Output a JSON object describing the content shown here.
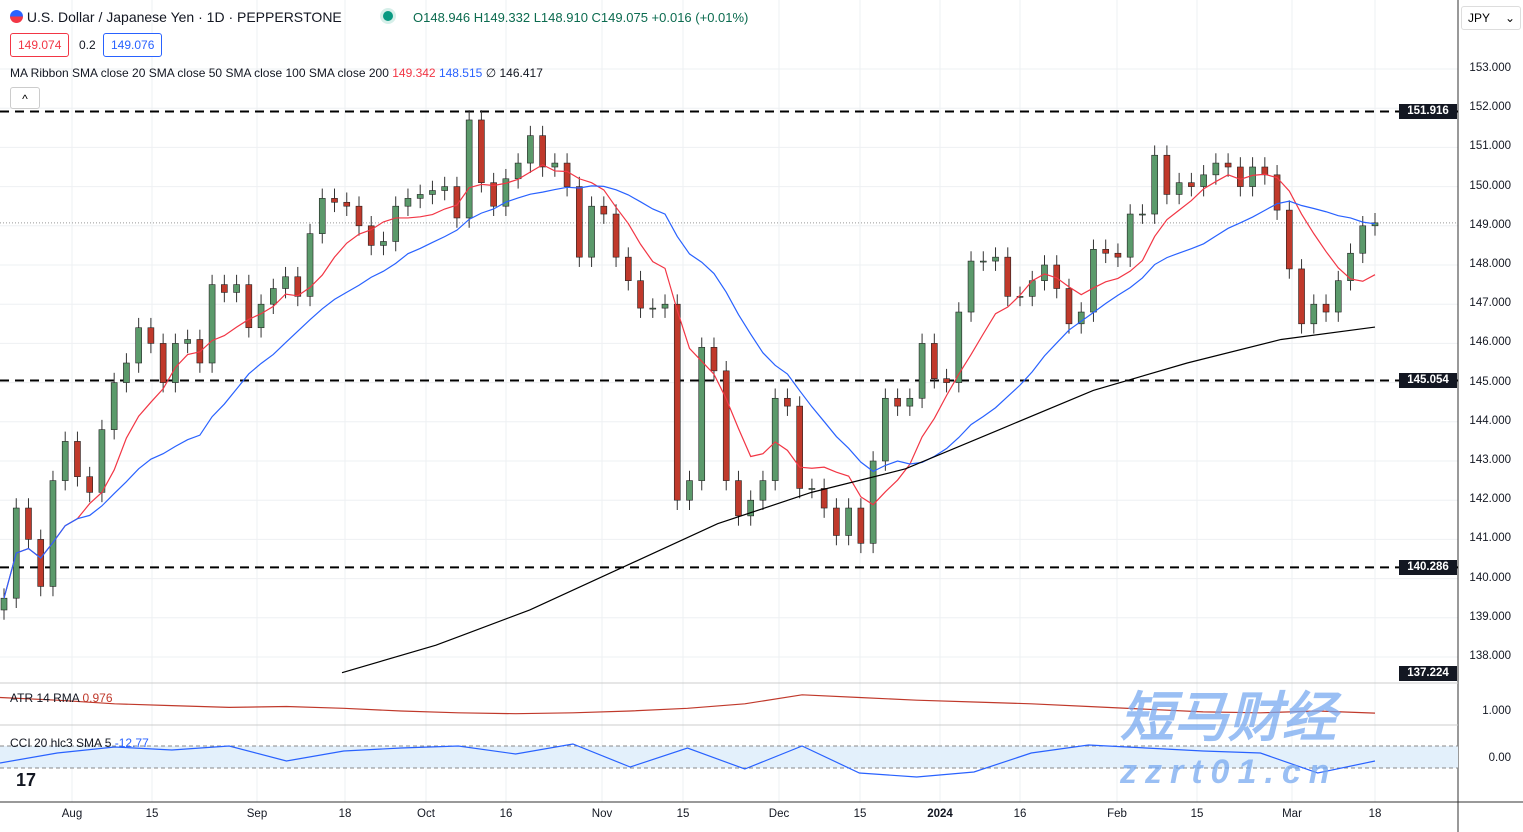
{
  "header": {
    "symbol": "U.S. Dollar / Japanese Yen · 1D · PEPPERSTONE",
    "ohlc": "O148.946 H149.332 L148.910 C149.075 +0.016 (+0.01%)",
    "bid": "149.074",
    "spread": "0.2",
    "ask": "149.076",
    "currency": "JPY"
  },
  "ma_legend": {
    "label": "MA Ribbon SMA close 20 SMA close 50 SMA close 100 SMA close 200",
    "v20": "149.342",
    "v50": "148.515",
    "v100": "∅",
    "v200": "146.417"
  },
  "atr": {
    "label": "ATR 14 RMA",
    "value": "0.976",
    "axis": "1.000"
  },
  "cci": {
    "label": "CCI 20 hlc3 SMA 5",
    "value": "-12.77",
    "axis": "0.00"
  },
  "watermark": {
    "cn": "短马财经",
    "url": "zzrt01.cn"
  },
  "colors": {
    "up": "#26a69a",
    "up_fill": "#5b9a6b",
    "down": "#c0392b",
    "sma20": "#f23645",
    "sma50": "#2962ff",
    "sma200": "#000000"
  },
  "chart_data": {
    "type": "candlestick",
    "ylim": [
      137.6,
      153.6
    ],
    "y_ticks": [
      "153.000",
      "152.000",
      "151.000",
      "150.000",
      "149.000",
      "148.000",
      "147.000",
      "146.000",
      "145.000",
      "144.000",
      "143.000",
      "142.000",
      "141.000",
      "140.000",
      "139.000",
      "138.000"
    ],
    "x_ticks": [
      "Aug",
      "15",
      "Sep",
      "18",
      "Oct",
      "16",
      "Nov",
      "15",
      "Dec",
      "15",
      "2024",
      "16",
      "Feb",
      "15",
      "Mar",
      "18"
    ],
    "levels": [
      "151.916",
      "145.054",
      "140.286"
    ],
    "extra_label": "137.224",
    "closes": [
      139.5,
      141.8,
      141.0,
      139.8,
      142.5,
      143.5,
      142.6,
      142.2,
      143.8,
      145.0,
      145.5,
      146.4,
      146.0,
      145.0,
      146.0,
      146.1,
      145.5,
      147.5,
      147.3,
      147.5,
      146.4,
      147.0,
      147.4,
      147.7,
      147.2,
      148.8,
      149.7,
      149.6,
      149.5,
      149.0,
      148.5,
      148.6,
      149.5,
      149.7,
      149.8,
      149.9,
      150.0,
      149.2,
      151.7,
      150.1,
      149.5,
      150.2,
      150.6,
      151.3,
      150.5,
      150.6,
      150.0,
      148.2,
      149.5,
      149.3,
      148.2,
      147.6,
      146.9,
      146.9,
      147.0,
      142.0,
      142.5,
      145.9,
      145.3,
      142.5,
      141.6,
      142.0,
      142.5,
      144.6,
      144.4,
      142.3,
      142.3,
      141.8,
      141.1,
      141.8,
      140.9,
      143.0,
      144.6,
      144.4,
      144.6,
      146.0,
      145.1,
      145.0,
      146.8,
      148.1,
      148.1,
      148.2,
      147.2,
      147.2,
      147.6,
      148.0,
      147.4,
      146.5,
      146.8,
      148.4,
      148.3,
      148.2,
      149.3,
      149.3,
      150.8,
      149.8,
      150.1,
      150.0,
      150.3,
      150.6,
      150.5,
      150.0,
      150.5,
      150.3,
      149.4,
      147.9,
      146.5,
      147.0,
      146.8,
      147.6,
      148.3,
      149.0,
      149.075
    ],
    "sma200": [
      [
        33,
        137.6
      ],
      [
        43,
        138.3
      ],
      [
        56,
        139.2
      ],
      [
        66,
        140.3
      ],
      [
        79,
        141.4
      ],
      [
        92,
        142.2
      ],
      [
        104,
        142.8
      ],
      [
        117,
        143.8
      ],
      [
        129,
        144.8
      ],
      [
        142,
        145.5
      ],
      [
        154,
        146.1
      ],
      [
        163,
        146.417
      ]
    ],
    "atr_series": [
      1.15,
      1.12,
      1.08,
      1.06,
      1.04,
      1.05,
      1.03,
      1.0,
      0.98,
      0.97,
      0.98,
      1.0,
      1.03,
      1.08,
      1.18,
      1.15,
      1.12,
      1.1,
      1.08,
      1.05,
      1.02,
      0.99,
      0.98,
      1.0,
      0.976
    ],
    "cci_series": [
      -60,
      40,
      100,
      70,
      110,
      -40,
      60,
      90,
      110,
      30,
      130,
      -100,
      90,
      -120,
      110,
      -160,
      -200,
      -150,
      40,
      120,
      90,
      60,
      40,
      -160,
      -40
    ]
  }
}
